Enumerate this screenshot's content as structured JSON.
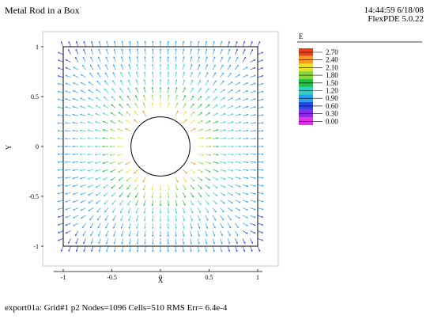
{
  "header": {
    "title": "Metal Rod in a Box",
    "time": "14:44:59 6/18/08",
    "version": "FlexPDE 5.0.22"
  },
  "footer": {
    "info": "export01a:  Grid#1  p2  Nodes=1096 Cells=510 RMS Err= 6.4e-4"
  },
  "chart_data": {
    "type": "vector-field",
    "title": "Metal Rod in a Box",
    "xlabel": "X",
    "ylabel": "Y",
    "xlim": [
      -1.1,
      1.1
    ],
    "ylim": [
      -1.1,
      1.1
    ],
    "x_ticks": [
      -1,
      -0.5,
      0,
      0.5,
      1
    ],
    "x_tick_labels": [
      "-1",
      "-0.5",
      "0",
      "0.5",
      "1"
    ],
    "y_ticks": [
      1,
      0.5,
      0,
      -0.5,
      -1
    ],
    "y_tick_labels": [
      "1",
      "0.5",
      "0",
      "-0.5",
      "-1"
    ],
    "domain_box": [
      -1,
      1,
      -1,
      1
    ],
    "rod": {
      "center": [
        0,
        0
      ],
      "radius": 0.3
    },
    "legend": {
      "variable": "E",
      "levels": [
        "2.70",
        "2.40",
        "2.10",
        "1.80",
        "1.50",
        "1.20",
        "0.90",
        "0.60",
        "0.30",
        "0.00"
      ],
      "colors": [
        "#e8401a",
        "#f59a1a",
        "#e8e020",
        "#8ad63a",
        "#20c040",
        "#30d0c0",
        "#2a9ef0",
        "#2a48e8",
        "#8a2ae8",
        "#e030e8"
      ]
    },
    "field_magnitude_max": 2.7
  }
}
